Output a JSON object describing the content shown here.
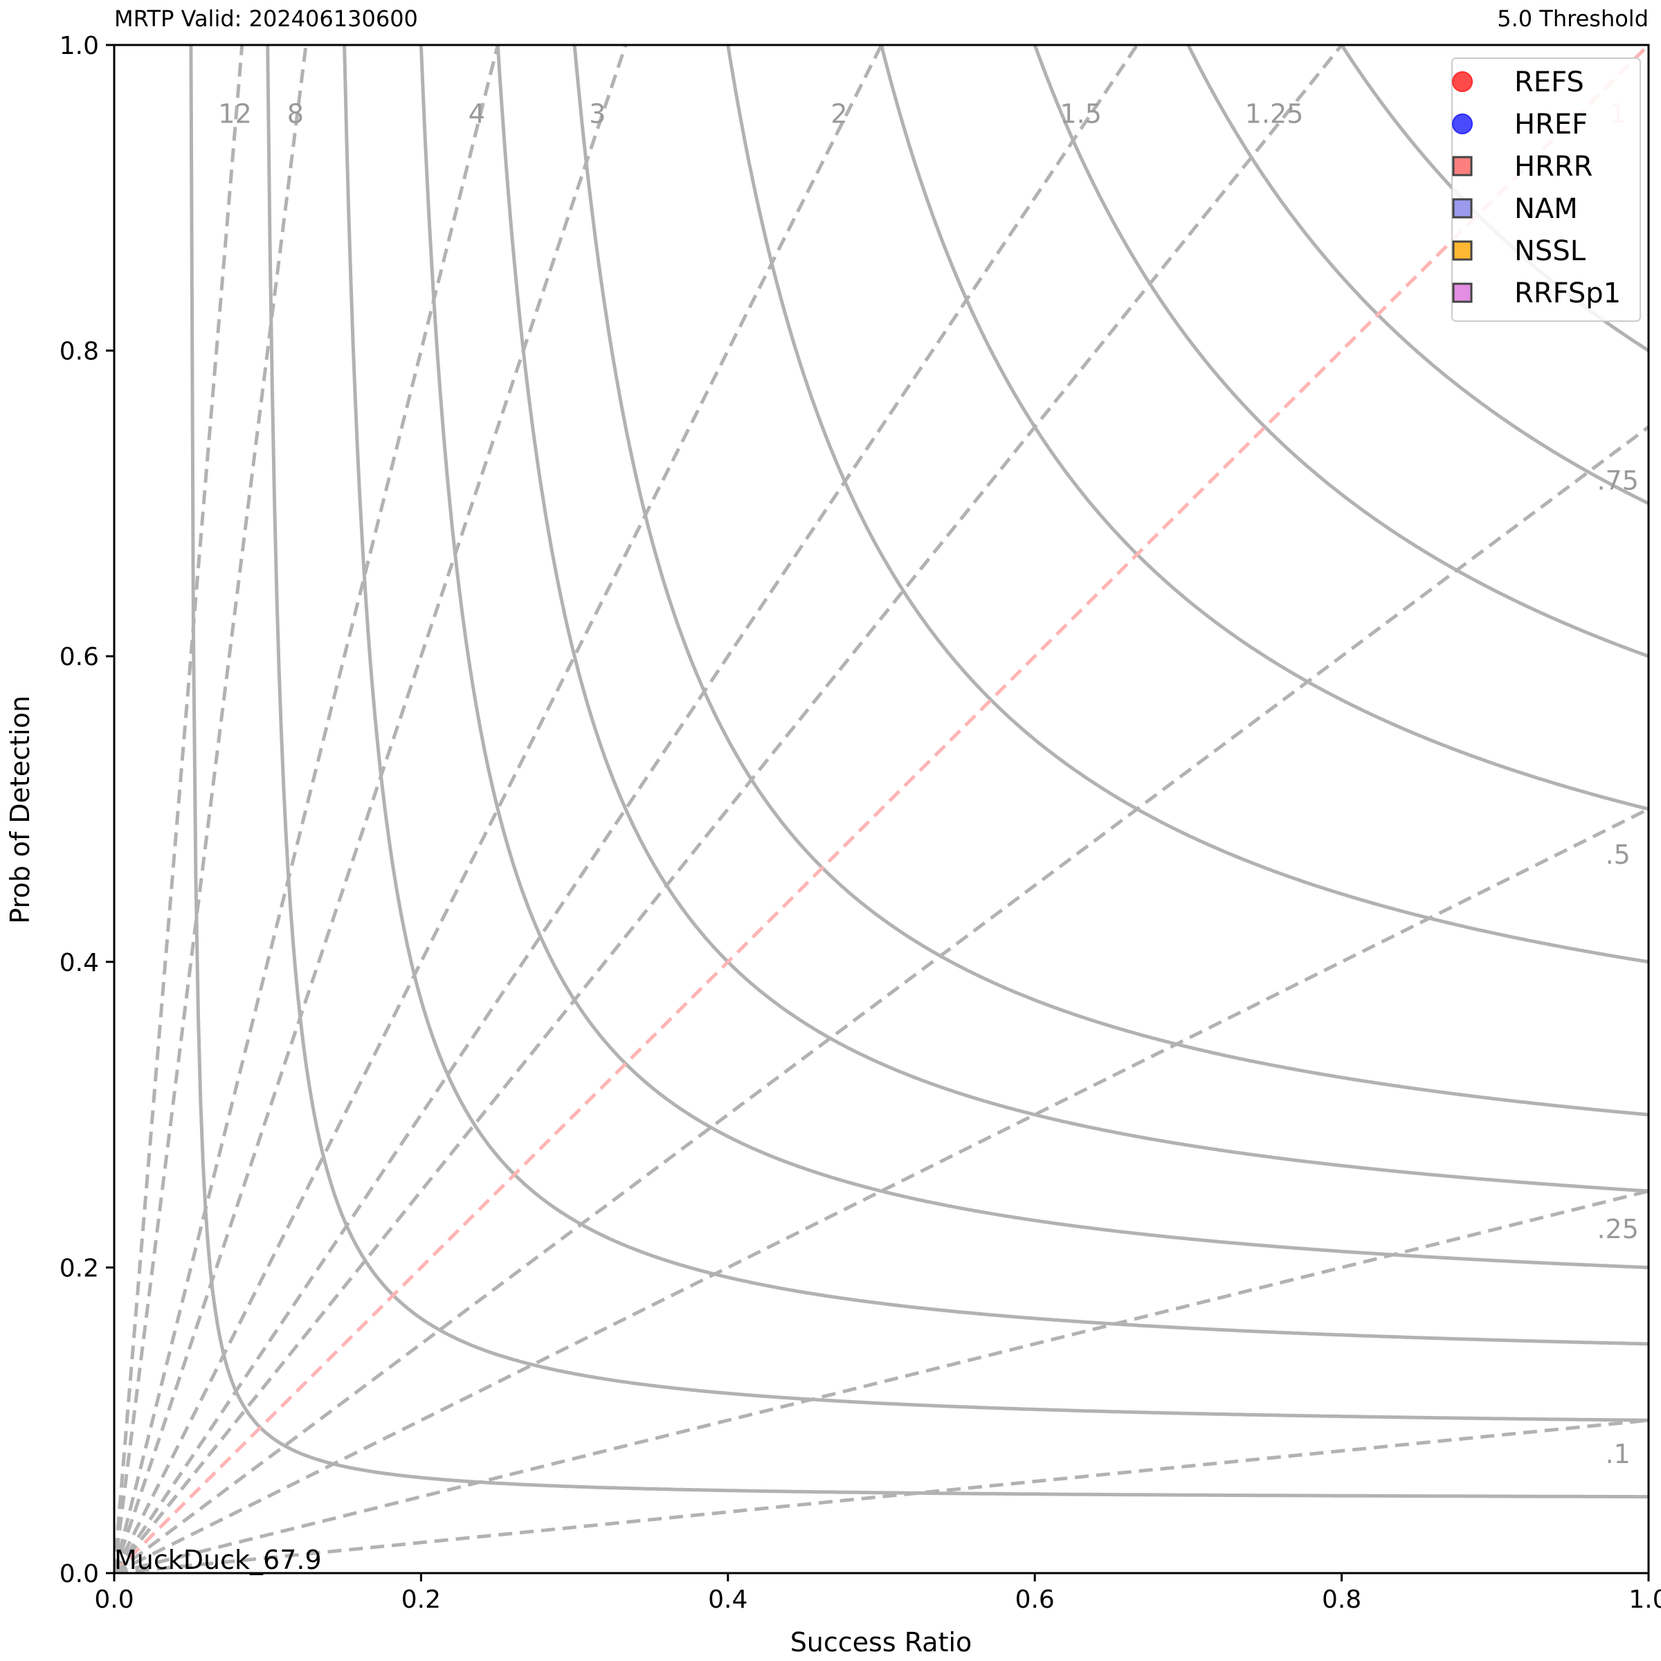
{
  "header": {
    "left_title": "MRTP Valid: 202406130600",
    "right_title": "5.0 Threshold"
  },
  "annotation": "MuckDuck_67.9",
  "colors": {
    "csi_lines": "#b2b2b2",
    "bias_lines": "#b2b2b2",
    "bias_one_line": "#ffb4b4",
    "contour_labels": "#999999",
    "REFS": "#ff2a2a",
    "HREF": "#2a2aff",
    "HRRR": "#ff7f7f",
    "NAM": "#9a9aee",
    "NSSL": "#ffb833",
    "RRFSp1": "#e38ee3"
  },
  "chart_data": {
    "type": "scatter",
    "subtype": "performance diagram",
    "xlabel": "Success Ratio",
    "ylabel": "Prob of Detection",
    "xlim": [
      0.0,
      1.0
    ],
    "ylim": [
      0.0,
      1.0
    ],
    "xticks": [
      "0.0",
      "0.2",
      "0.4",
      "0.6",
      "0.8",
      "1.0"
    ],
    "yticks": [
      "0.0",
      "0.2",
      "0.4",
      "0.6",
      "0.8",
      "1.0"
    ],
    "grid": false,
    "legend_position": "top-right",
    "csi_levels": [
      0.05,
      0.1,
      0.15,
      0.2,
      0.25,
      0.3,
      0.4,
      0.5,
      0.6,
      0.7,
      0.8
    ],
    "bias_lines": [
      {
        "bias": 12,
        "label": "12"
      },
      {
        "bias": 8,
        "label": "8"
      },
      {
        "bias": 4,
        "label": "4"
      },
      {
        "bias": 3,
        "label": "3"
      },
      {
        "bias": 2,
        "label": "2"
      },
      {
        "bias": 1.5,
        "label": "1.5"
      },
      {
        "bias": 1.25,
        "label": "1.25"
      },
      {
        "bias": 1,
        "label": "1"
      },
      {
        "bias": 0.75,
        "label": ".75"
      },
      {
        "bias": 0.5,
        "label": ".5"
      },
      {
        "bias": 0.25,
        "label": ".25"
      },
      {
        "bias": 0.1,
        "label": ".1"
      }
    ],
    "series": [
      {
        "name": "REFS",
        "marker": "circle",
        "points": []
      },
      {
        "name": "HREF",
        "marker": "circle",
        "points": []
      },
      {
        "name": "HRRR",
        "marker": "square",
        "points": []
      },
      {
        "name": "NAM",
        "marker": "square",
        "points": []
      },
      {
        "name": "NSSL",
        "marker": "square",
        "points": []
      },
      {
        "name": "RRFSp1",
        "marker": "square",
        "points": []
      }
    ]
  }
}
